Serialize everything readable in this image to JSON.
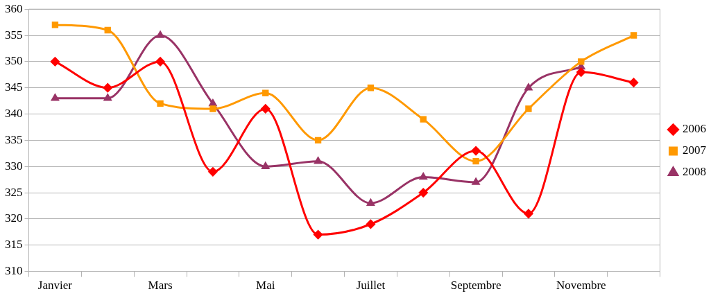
{
  "chart_data": {
    "type": "line",
    "categories": [
      "Janvier",
      null,
      "Mars",
      null,
      "Mai",
      null,
      "Juillet",
      null,
      "Septembre",
      null,
      "Novembre",
      null
    ],
    "series": [
      {
        "name": "2006",
        "color": "#ff0000",
        "marker": "diamond",
        "values": [
          350,
          345,
          350,
          329,
          341,
          317,
          319,
          325,
          333,
          321,
          348,
          346
        ]
      },
      {
        "name": "2007",
        "color": "#ff9900",
        "marker": "square",
        "values": [
          357,
          356,
          342,
          341,
          344,
          335,
          345,
          339,
          331,
          341,
          350,
          355
        ]
      },
      {
        "name": "2008",
        "color": "#993366",
        "marker": "triangle",
        "values": [
          343,
          343,
          355,
          342,
          330,
          331,
          323,
          328,
          327,
          345,
          349,
          null
        ]
      }
    ],
    "ylim": [
      310,
      360
    ],
    "yticks": [
      310,
      315,
      320,
      325,
      330,
      335,
      340,
      345,
      350,
      355,
      360
    ],
    "grid": "y",
    "legend": "right"
  }
}
